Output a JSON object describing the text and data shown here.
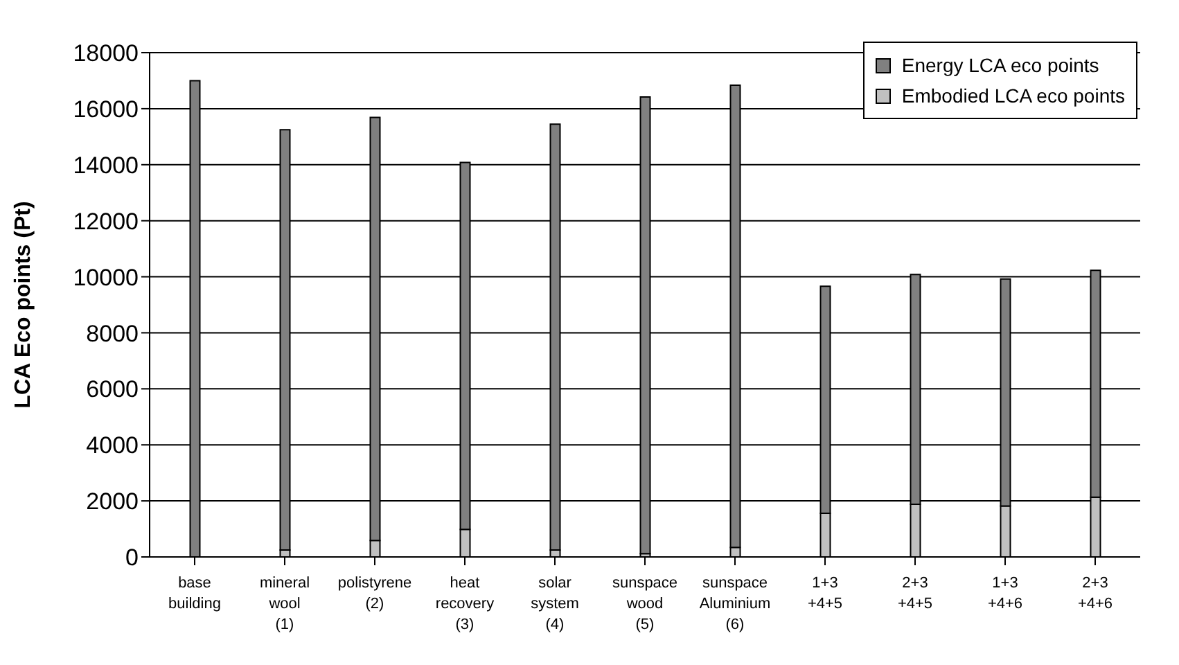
{
  "chart_data": {
    "type": "bar",
    "stacked": true,
    "ylabel": "LCA  Eco  points   (Pt)",
    "categories": [
      "base\nbuilding",
      "mineral\nwool\n(1)",
      "polistyrene\n(2)",
      "heat\nrecovery\n(3)",
      "solar\nsystem\n(4)",
      "sunspace\nwood\n(5)",
      "sunspace\nAluminium\n(6)",
      "1+3\n+4+5",
      "2+3\n+4+5",
      "1+3\n+4+6",
      "2+3\n+4+6"
    ],
    "series": [
      {
        "name": "Embodied LCA eco points",
        "color": "#c0c0c0",
        "values": [
          0,
          250,
          590,
          980,
          250,
          120,
          340,
          1560,
          1880,
          1820,
          2130
        ]
      },
      {
        "name": "Energy LCA eco points",
        "color": "#808080",
        "values": [
          17000,
          15000,
          15100,
          13100,
          15200,
          16300,
          16500,
          8100,
          8200,
          8100,
          8100
        ]
      }
    ],
    "ylim": [
      0,
      18000
    ],
    "yticks": [
      0,
      2000,
      4000,
      6000,
      8000,
      10000,
      12000,
      14000,
      16000,
      18000
    ],
    "grid": "y",
    "legend": "top right"
  }
}
